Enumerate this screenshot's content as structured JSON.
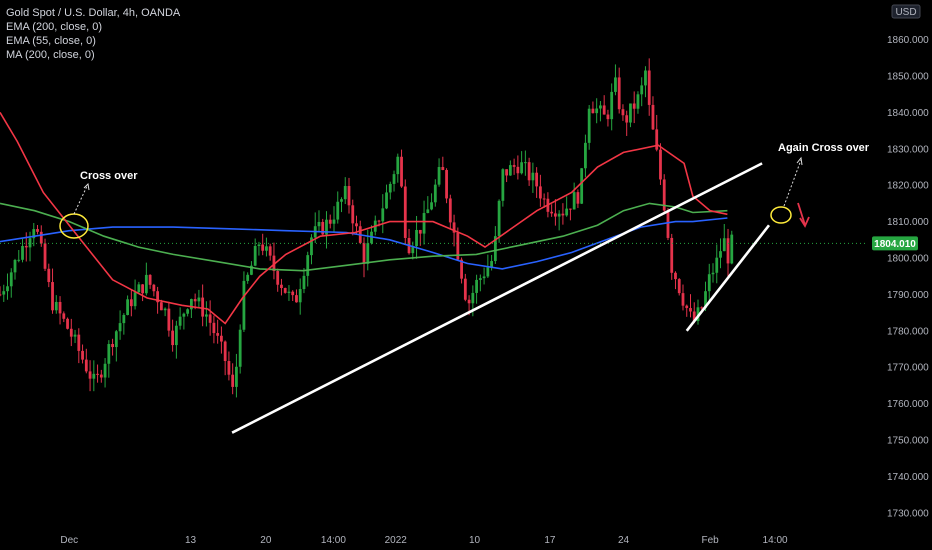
{
  "legend": {
    "title": "Gold Spot / U.S. Dollar, 4h, OANDA",
    "lines": [
      "EMA (200, close, 0)",
      "EMA (55, close, 0)",
      "MA (200, close, 0)"
    ]
  },
  "currency": "USD",
  "price_tag": "1804.010",
  "annotations": {
    "cross_over_1": "Cross over",
    "cross_over_2": "Again Cross over"
  },
  "colors": {
    "background": "#000000",
    "up_candle": "#26a641",
    "down_candle": "#e5334b",
    "ema200": "#2962ff",
    "ema55": "#4caf50",
    "ma200": "#f23645",
    "trendline": "#ffffff",
    "circle": "#ffeb3b",
    "price_tag_bg": "#26a641"
  },
  "chart_data": {
    "type": "line",
    "title": "Gold Spot / U.S. Dollar, 4h, OANDA",
    "xlabel": "",
    "ylabel": "",
    "ylim": [
      1725,
      1872
    ],
    "y_ticks": [
      1730,
      1740,
      1750,
      1760,
      1770,
      1780,
      1790,
      1800,
      1810,
      1820,
      1830,
      1840,
      1850,
      1860
    ],
    "x_ticks": [
      {
        "label": "Dec",
        "t": 0.08
      },
      {
        "label": "13",
        "t": 0.22
      },
      {
        "label": "20",
        "t": 0.307
      },
      {
        "label": "14:00",
        "t": 0.385
      },
      {
        "label": "2022",
        "t": 0.457
      },
      {
        "label": "10",
        "t": 0.548
      },
      {
        "label": "17",
        "t": 0.635
      },
      {
        "label": "24",
        "t": 0.72
      },
      {
        "label": "Feb",
        "t": 0.82
      },
      {
        "label": "14:00",
        "t": 0.895
      }
    ],
    "grid": false,
    "last_price": 1804.01,
    "series": [
      {
        "name": "EMA (200, close, 0)",
        "style": "line",
        "points": [
          [
            0,
            1804.5
          ],
          [
            0.04,
            1806
          ],
          [
            0.08,
            1807.5
          ],
          [
            0.13,
            1808.5
          ],
          [
            0.2,
            1808.5
          ],
          [
            0.27,
            1808
          ],
          [
            0.33,
            1807.5
          ],
          [
            0.4,
            1807
          ],
          [
            0.45,
            1805
          ],
          [
            0.5,
            1801.5
          ],
          [
            0.54,
            1798.5
          ],
          [
            0.58,
            1797
          ],
          [
            0.62,
            1799
          ],
          [
            0.66,
            1801.5
          ],
          [
            0.7,
            1805
          ],
          [
            0.74,
            1808.5
          ],
          [
            0.78,
            1810
          ],
          [
            0.8,
            1810
          ],
          [
            0.84,
            1811
          ]
        ]
      },
      {
        "name": "EMA (55, close, 0)",
        "style": "line",
        "points": [
          [
            0,
            1815
          ],
          [
            0.04,
            1813
          ],
          [
            0.08,
            1810
          ],
          [
            0.12,
            1806
          ],
          [
            0.16,
            1803
          ],
          [
            0.2,
            1801
          ],
          [
            0.25,
            1799
          ],
          [
            0.3,
            1797
          ],
          [
            0.35,
            1796.5
          ],
          [
            0.4,
            1798
          ],
          [
            0.45,
            1799.5
          ],
          [
            0.5,
            1800.5
          ],
          [
            0.55,
            1801
          ],
          [
            0.6,
            1803.5
          ],
          [
            0.65,
            1806
          ],
          [
            0.69,
            1809
          ],
          [
            0.72,
            1813
          ],
          [
            0.75,
            1815
          ],
          [
            0.78,
            1814
          ],
          [
            0.8,
            1812.5
          ],
          [
            0.84,
            1813
          ]
        ]
      },
      {
        "name": "MA (200, close, 0)",
        "style": "line",
        "points": [
          [
            0,
            1840
          ],
          [
            0.02,
            1832
          ],
          [
            0.05,
            1818
          ],
          [
            0.09,
            1806
          ],
          [
            0.13,
            1794
          ],
          [
            0.17,
            1789
          ],
          [
            0.21,
            1787
          ],
          [
            0.24,
            1786
          ],
          [
            0.26,
            1782
          ],
          [
            0.28,
            1789
          ],
          [
            0.3,
            1795
          ],
          [
            0.33,
            1801
          ],
          [
            0.37,
            1806
          ],
          [
            0.41,
            1807
          ],
          [
            0.45,
            1810
          ],
          [
            0.5,
            1810
          ],
          [
            0.54,
            1806
          ],
          [
            0.56,
            1803
          ],
          [
            0.59,
            1808
          ],
          [
            0.62,
            1813
          ],
          [
            0.66,
            1818
          ],
          [
            0.69,
            1825
          ],
          [
            0.72,
            1829
          ],
          [
            0.76,
            1831
          ],
          [
            0.79,
            1826
          ],
          [
            0.8,
            1817
          ],
          [
            0.82,
            1813
          ],
          [
            0.84,
            1812
          ]
        ]
      }
    ],
    "price_path": [
      [
        0,
        1790
      ],
      [
        0.04,
        1810
      ],
      [
        0.06,
        1788
      ],
      [
        0.08,
        1780
      ],
      [
        0.11,
        1765
      ],
      [
        0.13,
        1778
      ],
      [
        0.15,
        1788
      ],
      [
        0.17,
        1794
      ],
      [
        0.19,
        1786
      ],
      [
        0.2,
        1778
      ],
      [
        0.22,
        1790
      ],
      [
        0.24,
        1784
      ],
      [
        0.26,
        1772
      ],
      [
        0.27,
        1762
      ],
      [
        0.28,
        1790
      ],
      [
        0.3,
        1805
      ],
      [
        0.32,
        1795
      ],
      [
        0.34,
        1787
      ],
      [
        0.36,
        1806
      ],
      [
        0.38,
        1810
      ],
      [
        0.4,
        1818
      ],
      [
        0.42,
        1800
      ],
      [
        0.43,
        1806
      ],
      [
        0.45,
        1820
      ],
      [
        0.46,
        1828
      ],
      [
        0.47,
        1803
      ],
      [
        0.49,
        1810
      ],
      [
        0.51,
        1825
      ],
      [
        0.52,
        1812
      ],
      [
        0.53,
        1800
      ],
      [
        0.54,
        1787
      ],
      [
        0.55,
        1793
      ],
      [
        0.57,
        1800
      ],
      [
        0.58,
        1823
      ],
      [
        0.6,
        1826
      ],
      [
        0.62,
        1820
      ],
      [
        0.63,
        1815
      ],
      [
        0.65,
        1813
      ],
      [
        0.67,
        1818
      ],
      [
        0.68,
        1843
      ],
      [
        0.7,
        1838
      ],
      [
        0.71,
        1848
      ],
      [
        0.72,
        1837
      ],
      [
        0.74,
        1845
      ],
      [
        0.745,
        1852
      ],
      [
        0.75,
        1840
      ],
      [
        0.76,
        1826
      ],
      [
        0.77,
        1810
      ],
      [
        0.775,
        1798
      ],
      [
        0.78,
        1795
      ],
      [
        0.79,
        1788
      ],
      [
        0.8,
        1782
      ],
      [
        0.81,
        1786
      ],
      [
        0.82,
        1795
      ],
      [
        0.83,
        1800
      ],
      [
        0.835,
        1806
      ],
      [
        0.84,
        1800
      ],
      [
        0.845,
        1804
      ]
    ],
    "trendlines": [
      {
        "from": [
          0.268,
          1752
        ],
        "to": [
          0.88,
          1826
        ]
      },
      {
        "from": [
          0.793,
          1780
        ],
        "to": [
          0.888,
          1809
        ]
      }
    ]
  }
}
